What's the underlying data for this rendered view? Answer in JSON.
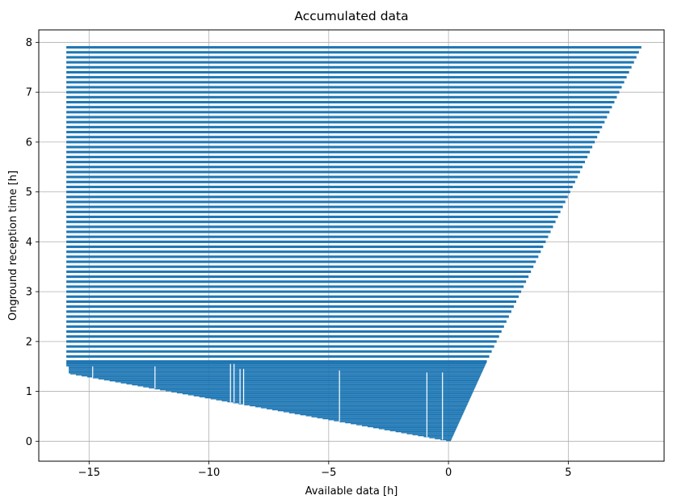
{
  "chart_data": {
    "type": "bar",
    "orientation": "horizontal",
    "title": "Accumulated data",
    "xlabel": "Available data [h]",
    "ylabel": "Onground reception time [h]",
    "xlim": [
      -17.1,
      9.0
    ],
    "ylim": [
      -0.4,
      8.25
    ],
    "grid": true,
    "color": "#1f77b4",
    "x_ticks": [
      -15,
      -10,
      -5,
      0,
      5
    ],
    "x_tick_labels": [
      "−15",
      "−10",
      "−5",
      "0",
      "5"
    ],
    "y_ticks": [
      0,
      1,
      2,
      3,
      4,
      5,
      6,
      7,
      8
    ],
    "y_tick_labels": [
      "0",
      "1",
      "2",
      "3",
      "4",
      "5",
      "6",
      "7",
      "8"
    ],
    "bar_left": -15.95,
    "bars_dense": {
      "y_start": 0.0,
      "y_end": 1.55,
      "step": 0.02,
      "bar_height": 0.02,
      "right_start": 0.1,
      "right_end": 1.58
    },
    "bars_dense_left_edge": [
      [
        0.0,
        -0.1
      ],
      [
        1.35,
        -15.9
      ],
      [
        1.6,
        -15.9
      ]
    ],
    "gaps": [
      {
        "x": -14.85,
        "y_top": 1.5
      },
      {
        "x": -12.25,
        "y_top": 1.5
      },
      {
        "x": -9.1,
        "y_top": 1.55
      },
      {
        "x": -8.95,
        "y_top": 1.55
      },
      {
        "x": -8.7,
        "y_top": 1.45
      },
      {
        "x": -8.55,
        "y_top": 1.45
      },
      {
        "x": -4.55,
        "y_top": 1.42
      },
      {
        "x": -0.9,
        "y_top": 1.38
      },
      {
        "x": -0.25,
        "y_top": 1.38
      }
    ],
    "bars_sparse": {
      "y_start": 1.6,
      "y_end": 7.93,
      "step": 0.1,
      "bar_height": 0.05,
      "right_start": 1.6,
      "right_end": 8.05
    }
  }
}
